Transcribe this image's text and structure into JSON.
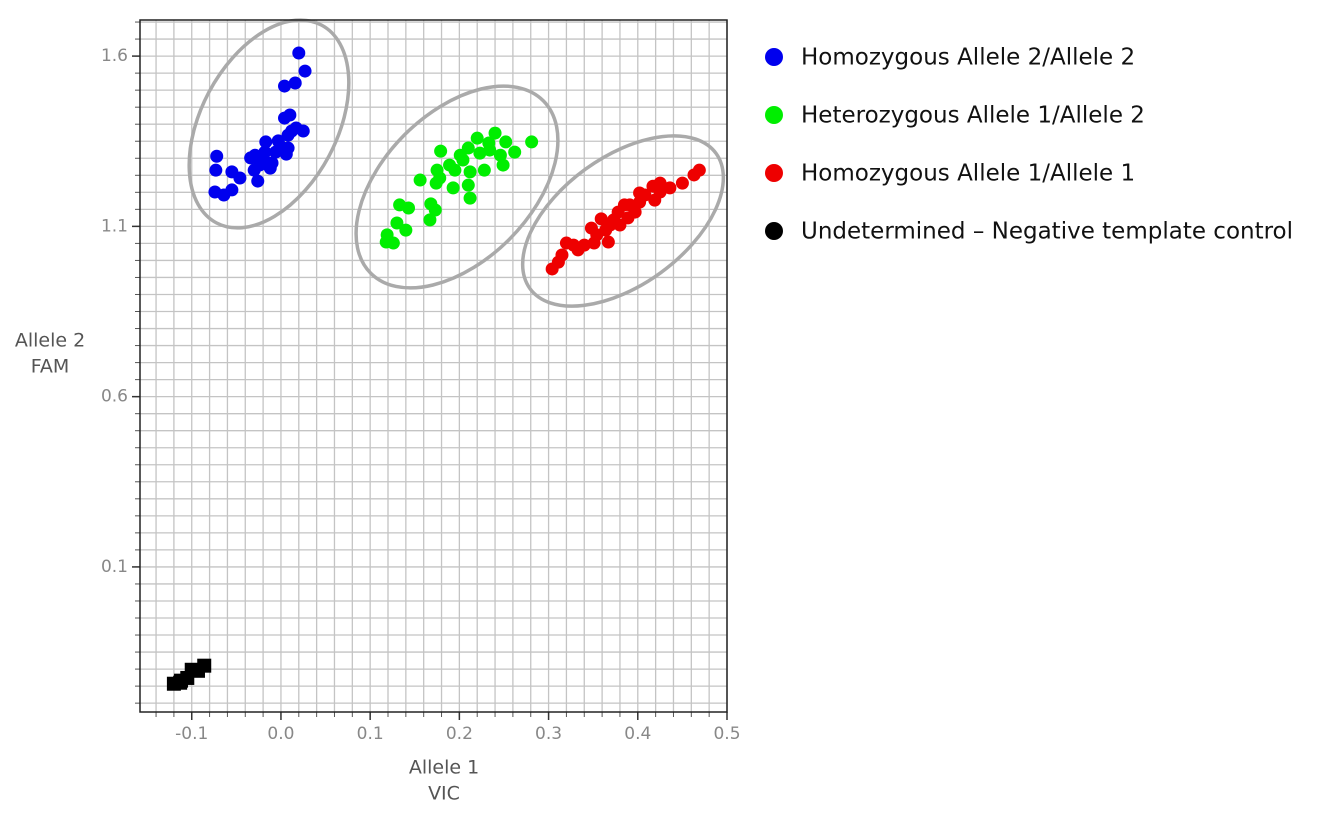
{
  "chart_data": {
    "type": "scatter",
    "xlabel": [
      "Allele 1",
      "VIC"
    ],
    "ylabel": [
      "Allele 2",
      "FAM"
    ],
    "xlim": [
      -0.158,
      0.5
    ],
    "ylim": [
      -0.326,
      1.706
    ],
    "xticks": [
      -0.1,
      {
        "value": 0,
        "label": "0.0"
      },
      0.1,
      0.2,
      0.3,
      0.4,
      0.5
    ],
    "yticks": [
      0.1,
      0.6,
      1.1,
      1.6
    ],
    "x_minor_grid": [
      -0.14,
      -0.12,
      -0.1,
      -0.08,
      -0.06,
      -0.04,
      -0.02,
      0,
      0.02,
      0.04,
      0.06,
      0.08,
      0.1,
      0.12,
      0.14,
      0.16,
      0.18,
      0.2,
      0.22,
      0.24,
      0.26,
      0.28,
      0.3,
      0.32,
      0.34,
      0.36,
      0.38,
      0.4,
      0.42,
      0.44,
      0.46,
      0.48,
      0.5
    ],
    "y_minor_grid": [
      -0.3,
      -0.25,
      -0.2,
      -0.15,
      -0.1,
      -0.05,
      0,
      0.05,
      0.1,
      0.15,
      0.2,
      0.25,
      0.3,
      0.35,
      0.4,
      0.45,
      0.5,
      0.55,
      0.6,
      0.65,
      0.7,
      0.75,
      0.8,
      0.85,
      0.9,
      0.95,
      1,
      1.05,
      1.1,
      1.15,
      1.2,
      1.25,
      1.3,
      1.35,
      1.4,
      1.45,
      1.5,
      1.55,
      1.6,
      1.65,
      1.7
    ],
    "grid": true,
    "legend": "right",
    "series": [
      {
        "name": "Homozygous Allele 2/Allele 2",
        "color": "#0000ee",
        "marker": "circle",
        "x": [
          0.02,
          0.027,
          0.016,
          0.004,
          0.01,
          0.004,
          0.025,
          0.012,
          0.008,
          -0.003,
          -0.017,
          0.008,
          -0.006,
          -0.018,
          -0.029,
          -0.019,
          -0.01,
          0.006,
          -0.034,
          -0.024,
          -0.012,
          -0.03,
          -0.072,
          -0.073,
          -0.055,
          -0.046,
          -0.026,
          -0.074,
          -0.064,
          -0.055,
          0.017,
          -0.001
        ],
        "y": [
          1.609,
          1.556,
          1.521,
          1.512,
          1.427,
          1.418,
          1.38,
          1.38,
          1.368,
          1.351,
          1.348,
          1.33,
          1.318,
          1.318,
          1.309,
          1.295,
          1.286,
          1.312,
          1.301,
          1.28,
          1.271,
          1.265,
          1.306,
          1.265,
          1.26,
          1.242,
          1.233,
          1.201,
          1.192,
          1.207,
          1.389,
          1.336
        ]
      },
      {
        "name": "Heterozygous Allele 1/Allele 2",
        "color": "#00ee00",
        "marker": "circle",
        "x": [
          0.281,
          0.24,
          0.22,
          0.233,
          0.252,
          0.262,
          0.246,
          0.249,
          0.21,
          0.223,
          0.201,
          0.179,
          0.204,
          0.189,
          0.175,
          0.195,
          0.212,
          0.228,
          0.178,
          0.21,
          0.193,
          0.174,
          0.212,
          0.133,
          0.143,
          0.168,
          0.173,
          0.13,
          0.14,
          0.119,
          0.126,
          0.118,
          0.167,
          0.156,
          0.234
        ],
        "y": [
          1.348,
          1.374,
          1.359,
          1.345,
          1.348,
          1.318,
          1.309,
          1.28,
          1.33,
          1.315,
          1.309,
          1.321,
          1.295,
          1.28,
          1.265,
          1.265,
          1.26,
          1.265,
          1.242,
          1.221,
          1.213,
          1.227,
          1.183,
          1.163,
          1.154,
          1.166,
          1.148,
          1.11,
          1.089,
          1.075,
          1.051,
          1.054,
          1.119,
          1.236,
          1.324
        ]
      },
      {
        "name": "Homozygous Allele 1/Allele 1",
        "color": "#ee0000",
        "marker": "circle",
        "x": [
          0.469,
          0.463,
          0.45,
          0.436,
          0.425,
          0.417,
          0.408,
          0.419,
          0.402,
          0.391,
          0.385,
          0.397,
          0.378,
          0.389,
          0.373,
          0.38,
          0.369,
          0.359,
          0.364,
          0.348,
          0.354,
          0.34,
          0.328,
          0.32,
          0.333,
          0.315,
          0.311,
          0.304,
          0.351,
          0.367,
          0.402,
          0.425
        ],
        "y": [
          1.265,
          1.251,
          1.227,
          1.213,
          1.201,
          1.218,
          1.192,
          1.177,
          1.171,
          1.163,
          1.163,
          1.142,
          1.142,
          1.125,
          1.119,
          1.104,
          1.104,
          1.122,
          1.089,
          1.095,
          1.075,
          1.045,
          1.045,
          1.051,
          1.031,
          1.016,
          0.995,
          0.975,
          1.051,
          1.054,
          1.198,
          1.227
        ]
      },
      {
        "name": "Undetermined – Negative template control",
        "color": "#000000",
        "marker": "square",
        "x": [
          -0.086,
          -0.093,
          -0.105,
          -0.112,
          -0.12,
          -0.1,
          -0.113
        ],
        "y": [
          -0.19,
          -0.205,
          -0.226,
          -0.234,
          -0.243,
          -0.202,
          -0.24
        ]
      }
    ]
  }
}
